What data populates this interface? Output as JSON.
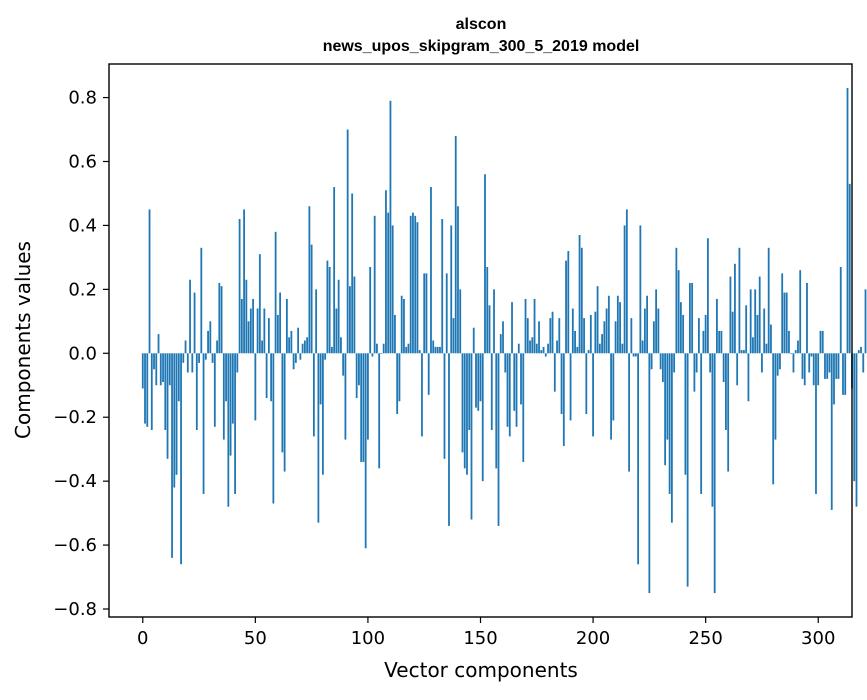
{
  "chart_data": {
    "type": "bar",
    "title": "alscon",
    "subtitle": "news_upos_skipgram_300_5_2019 model",
    "xlabel": "Vector components",
    "ylabel": "Components values",
    "xlim": [
      -15,
      315
    ],
    "ylim": [
      -0.825,
      0.905
    ],
    "xticks": [
      0,
      50,
      100,
      150,
      200,
      250,
      300
    ],
    "xtick_labels": [
      "0",
      "50",
      "100",
      "150",
      "200",
      "250",
      "300"
    ],
    "yticks": [
      -0.8,
      -0.6,
      -0.4,
      -0.2,
      0.0,
      0.2,
      0.4,
      0.6,
      0.8
    ],
    "ytick_labels": [
      "−0.8",
      "−0.6",
      "−0.4",
      "−0.2",
      "0.0",
      "0.2",
      "0.4",
      "0.6",
      "0.8"
    ],
    "grid": false,
    "bar_color": "#1f77b4",
    "values": [
      -0.11,
      -0.22,
      -0.23,
      0.45,
      -0.24,
      -0.05,
      -0.1,
      0.06,
      -0.1,
      -0.09,
      -0.24,
      -0.33,
      -0.1,
      -0.64,
      -0.42,
      -0.38,
      -0.15,
      -0.66,
      -0.03,
      0.04,
      -0.06,
      0.23,
      -0.06,
      0.19,
      -0.24,
      -0.03,
      0.33,
      -0.44,
      -0.02,
      0.07,
      0.1,
      -0.03,
      -0.23,
      0.04,
      0.22,
      0.21,
      -0.27,
      -0.15,
      -0.48,
      -0.32,
      -0.22,
      -0.44,
      -0.06,
      0.42,
      0.17,
      0.45,
      0.23,
      0.1,
      0.14,
      0.17,
      -0.21,
      0.14,
      0.31,
      0.04,
      0.14,
      -0.14,
      0.11,
      -0.15,
      -0.47,
      0.38,
      0.12,
      0.19,
      -0.31,
      -0.37,
      0.17,
      0.05,
      0.07,
      -0.05,
      -0.03,
      0.08,
      -0.02,
      0.03,
      0.04,
      0.05,
      0.46,
      0.34,
      -0.26,
      0.2,
      -0.53,
      -0.16,
      -0.38,
      -0.02,
      0.29,
      0.27,
      0.02,
      0.52,
      0.14,
      0.23,
      0.05,
      -0.07,
      -0.27,
      0.7,
      0.21,
      0.5,
      0.24,
      -0.14,
      -0.1,
      -0.34,
      -0.34,
      -0.61,
      -0.27,
      0.27,
      -0.01,
      0.43,
      0.03,
      -0.36,
      0.0,
      0.03,
      0.51,
      0.44,
      0.79,
      0.4,
      0.12,
      -0.19,
      -0.15,
      0.18,
      0.17,
      0.02,
      0.03,
      0.43,
      0.44,
      0.43,
      0.41,
      0.01,
      -0.26,
      0.25,
      0.25,
      -0.13,
      0.52,
      0.04,
      0.02,
      0.02,
      0.02,
      0.42,
      -0.33,
      0.25,
      -0.54,
      0.4,
      0.11,
      0.68,
      0.46,
      0.2,
      -0.31,
      -0.36,
      -0.38,
      -0.24,
      -0.52,
      0.08,
      -0.17,
      -0.18,
      -0.15,
      -0.4,
      0.56,
      0.27,
      0.15,
      -0.24,
      0.2,
      -0.36,
      -0.54,
      0.06,
      0.1,
      -0.06,
      -0.23,
      -0.26,
      0.16,
      -0.18,
      -0.23,
      0.03,
      -0.16,
      -0.34,
      0.17,
      0.11,
      0.04,
      0.05,
      0.17,
      0.03,
      0.1,
      0.01,
      0.02,
      -0.01,
      0.03,
      0.11,
      0.13,
      -0.12,
      0.04,
      0.11,
      -0.19,
      -0.29,
      0.29,
      0.32,
      -0.21,
      0.14,
      0.07,
      0.02,
      0.37,
      0.33,
      0.11,
      -0.19,
      0.01,
      0.12,
      -0.26,
      0.13,
      0.21,
      0.03,
      0.06,
      0.1,
      0.14,
      0.18,
      -0.27,
      -0.21,
      0.1,
      0.18,
      0.16,
      0.03,
      0.4,
      0.45,
      -0.37,
      0.11,
      -0.01,
      -0.01,
      -0.66,
      0.4,
      0.04,
      0.14,
      0.18,
      -0.75,
      -0.05,
      0.1,
      0.2,
      0.14,
      -0.05,
      -0.09,
      -0.35,
      -0.27,
      -0.44,
      -0.53,
      -0.06,
      0.33,
      0.26,
      0.16,
      0.12,
      -0.38,
      -0.73,
      0.22,
      0.22,
      -0.12,
      -0.06,
      0.11,
      -0.44,
      0.07,
      0.12,
      0.36,
      -0.06,
      -0.48,
      -0.75,
      0.17,
      0.07,
      0.07,
      -0.09,
      -0.24,
      -0.37,
      0.24,
      0.13,
      0.28,
      -0.1,
      0.33,
      0.01,
      0.01,
      0.15,
      -0.15,
      0.2,
      0.05,
      0.2,
      0.12,
      0.24,
      -0.06,
      0.14,
      0.03,
      0.33,
      0.09,
      -0.41,
      -0.27,
      -0.07,
      -0.05,
      0.25,
      0.19,
      0.19,
      0.07,
      0.0,
      -0.06,
      0.01,
      0.04,
      0.26,
      -0.08,
      -0.1,
      0.22,
      -0.06,
      -0.01,
      -0.1,
      -0.44,
      -0.1,
      0.07,
      0.07,
      -0.08,
      -0.08,
      -0.06,
      -0.49,
      -0.16,
      -0.08,
      -0.08,
      0.27,
      -0.13,
      -0.13,
      0.83,
      0.53,
      -0.11,
      -0.4,
      -0.48,
      0.01,
      0.02,
      -0.06,
      0.2
    ]
  }
}
